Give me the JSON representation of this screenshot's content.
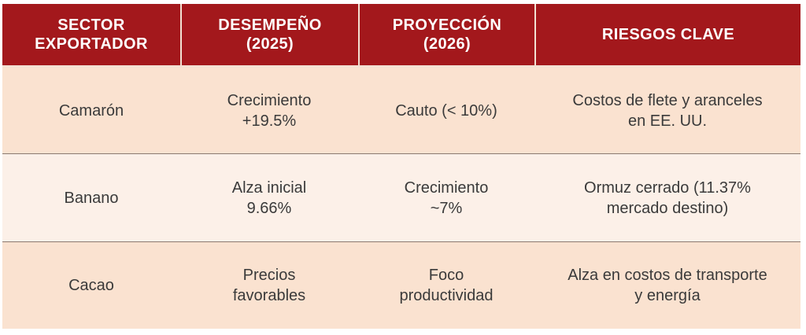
{
  "table": {
    "headers": [
      "SECTOR\nEXPORTADOR",
      "DESEMPEÑO\n(2025)",
      "PROYECCIÓN\n(2026)",
      "RIESGOS CLAVE"
    ],
    "rows": [
      [
        "Camarón",
        "Crecimiento\n+19.5%",
        "Cauto (< 10%)",
        "Costos de flete y aranceles\nen EE. UU."
      ],
      [
        "Banano",
        "Alza inicial\n9.66%",
        "Crecimiento\n~7%",
        "Ormuz cerrado (11.37%\nmercado destino)"
      ],
      [
        "Cacao",
        "Precios\nfavorables",
        "Foco\nproductividad",
        "Alza en costos de transporte\ny energía"
      ]
    ]
  },
  "colors": {
    "header_bg": "#a3181c",
    "header_text": "#ffffff",
    "row_odd_bg": "#fae2d0",
    "row_even_bg": "#fcf0e8",
    "body_text": "#3a3a3a"
  }
}
